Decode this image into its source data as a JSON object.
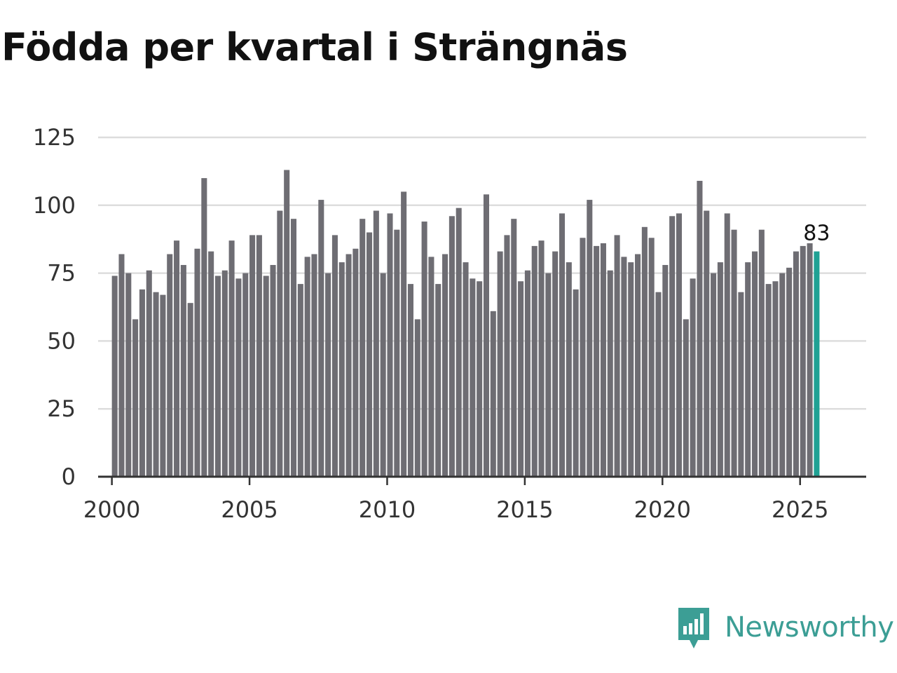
{
  "colors": {
    "bar": "#6e6d73",
    "highlight": "#1fa194",
    "grid": "#dddddd",
    "axis": "#333333",
    "brand": "#3c9e95"
  },
  "brand": {
    "name": "Newsworthy",
    "icon": "newsworthy-logo-icon"
  },
  "chart_data": {
    "type": "bar",
    "title": "Födda per kvartal i Strängnäs",
    "xlabel": "",
    "ylabel": "",
    "ylim": [
      0,
      125
    ],
    "xlim": [
      1999.5,
      2027.4
    ],
    "grid": true,
    "yticks": [
      "0",
      "25",
      "50",
      "75",
      "100",
      "125"
    ],
    "xticks": [
      "2000",
      "2005",
      "2010",
      "2015",
      "2020",
      "2025"
    ],
    "x_start": 2000.0,
    "x_step": 0.25,
    "highlight": {
      "index": 102,
      "label": "83"
    },
    "values": [
      74,
      82,
      75,
      58,
      69,
      76,
      68,
      67,
      82,
      87,
      78,
      64,
      84,
      110,
      83,
      74,
      76,
      87,
      73,
      75,
      89,
      89,
      74,
      78,
      98,
      113,
      95,
      71,
      81,
      82,
      102,
      75,
      89,
      79,
      82,
      84,
      95,
      90,
      98,
      75,
      97,
      91,
      105,
      71,
      58,
      94,
      81,
      71,
      82,
      96,
      99,
      79,
      73,
      72,
      104,
      61,
      83,
      89,
      95,
      72,
      76,
      85,
      87,
      75,
      83,
      97,
      79,
      69,
      88,
      102,
      85,
      86,
      76,
      89,
      81,
      79,
      82,
      92,
      88,
      68,
      78,
      96,
      97,
      58,
      73,
      109,
      98,
      75,
      79,
      97,
      91,
      68,
      79,
      83,
      91,
      71,
      72,
      75,
      77,
      83,
      85,
      86,
      83
    ]
  }
}
